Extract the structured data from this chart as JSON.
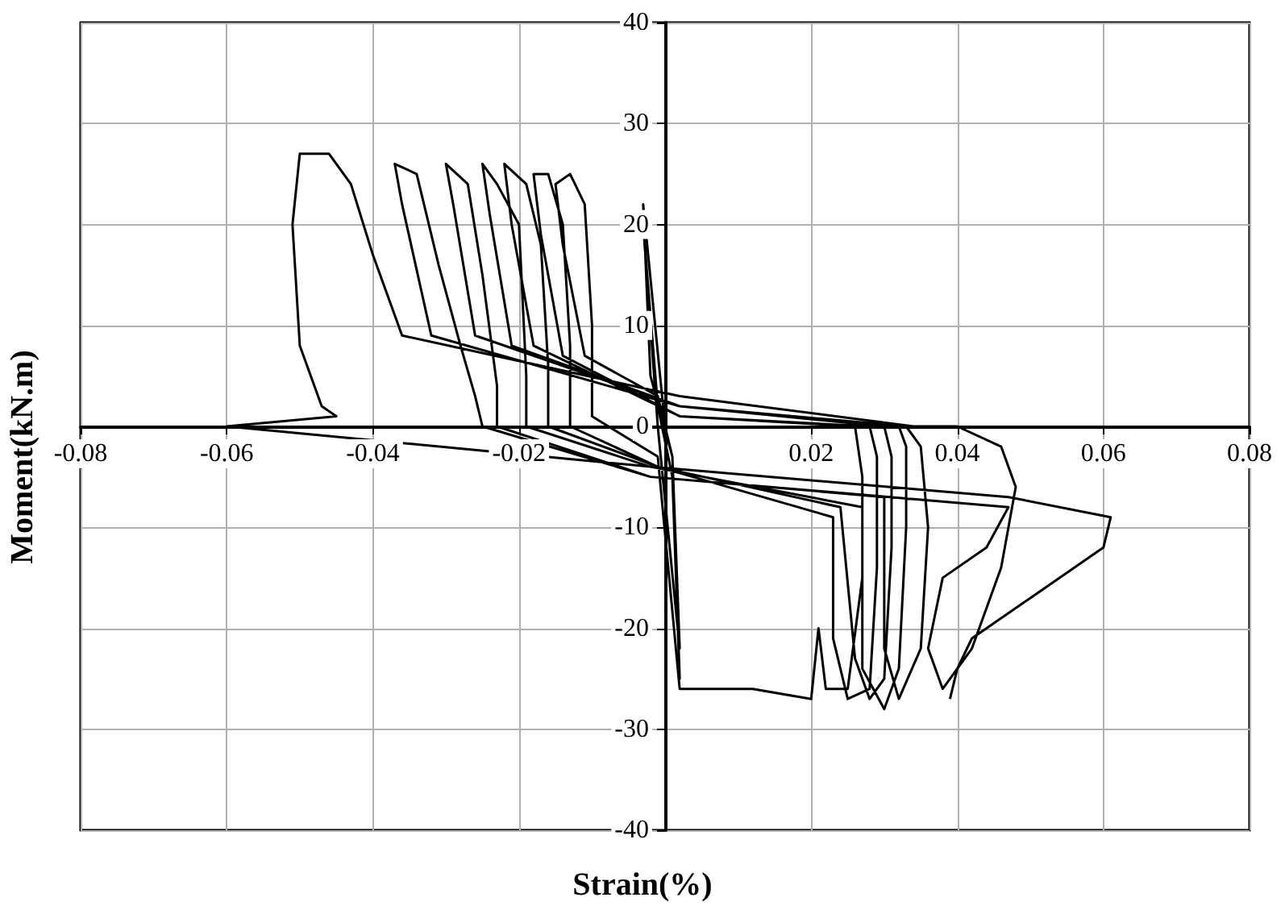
{
  "chart_data": {
    "type": "line",
    "xlabel": "Strain(%)",
    "ylabel": "Moment(kN.m)",
    "xlim": [
      -0.08,
      0.08
    ],
    "ylim": [
      -40,
      40
    ],
    "xticks": [
      -0.08,
      -0.06,
      -0.04,
      -0.02,
      0.02,
      0.04,
      0.06,
      0.08
    ],
    "yticks": [
      -40,
      -30,
      -20,
      -10,
      0,
      10,
      20,
      30,
      40
    ],
    "grid": true,
    "marker": "none",
    "line_style": "solid",
    "x": [
      0,
      -0.003,
      -0.002,
      0.001,
      0.002,
      0.001,
      -0.001,
      -0.003,
      -0.001,
      0.002,
      0.001,
      -0.001,
      -0.011,
      -0.014,
      -0.015,
      -0.013,
      -0.011,
      -0.01,
      -0.01,
      -0.001,
      0.002,
      0.012,
      0.02,
      0.021,
      0.022,
      0.025,
      0.027,
      0.027,
      0.026,
      0.002,
      -0.014,
      -0.017,
      -0.018,
      -0.016,
      -0.014,
      -0.013,
      -0.013,
      -0.001,
      0.023,
      0.023,
      0.025,
      0.028,
      0.029,
      0.029,
      0.028,
      0.002,
      -0.018,
      -0.021,
      -0.022,
      -0.019,
      -0.017,
      -0.016,
      -0.016,
      -0.001,
      0.024,
      0.026,
      0.028,
      0.03,
      0.031,
      0.031,
      0.03,
      0.002,
      -0.021,
      -0.024,
      -0.025,
      -0.023,
      -0.02,
      -0.019,
      -0.019,
      -0.002,
      0.027,
      0.027,
      0.03,
      0.032,
      0.033,
      0.033,
      0.032,
      0.002,
      -0.026,
      -0.029,
      -0.03,
      -0.027,
      -0.025,
      -0.023,
      -0.023,
      -0.002,
      0.03,
      0.03,
      0.032,
      0.035,
      0.036,
      0.035,
      0.033,
      0.002,
      -0.032,
      -0.036,
      -0.037,
      -0.034,
      -0.031,
      -0.028,
      -0.026,
      -0.025,
      -0.002,
      0.047,
      0.044,
      0.038,
      0.036,
      0.038,
      0.042,
      0.046,
      0.048,
      0.046,
      0.04,
      0.034,
      0.002,
      -0.036,
      -0.04,
      -0.043,
      -0.046,
      -0.05,
      -0.051,
      -0.05,
      -0.047,
      -0.045,
      -0.06,
      -0.002,
      0.047,
      0.061,
      0.06,
      0.05,
      0.042,
      0.04,
      0.039
    ],
    "series": [
      {
        "color": "#000000",
        "values": [
          0,
          22,
          5,
          -3,
          -25,
          -5,
          2,
          20,
          0,
          -22,
          -3,
          3,
          7,
          18,
          24,
          25,
          22,
          10,
          1,
          -3,
          -26,
          -26,
          -27,
          -20,
          -26,
          -26,
          -15,
          -5,
          0,
          1,
          7,
          19,
          25,
          25,
          20,
          8,
          0,
          -4,
          -9,
          -21,
          -27,
          -26,
          -14,
          -3,
          0,
          1,
          8,
          20,
          26,
          24,
          18,
          6,
          0,
          -4,
          -8,
          -23,
          -27,
          -25,
          -12,
          -3,
          0,
          2,
          8,
          21,
          26,
          24,
          20,
          5,
          0,
          -4,
          -8,
          -24,
          -28,
          -24,
          -10,
          -2,
          0,
          2,
          9,
          22,
          26,
          24,
          15,
          4,
          0,
          -5,
          -7,
          -22,
          -27,
          -22,
          -10,
          -2,
          0,
          2,
          9,
          22,
          26,
          25,
          16,
          8,
          3,
          0,
          -5,
          -8,
          -12,
          -15,
          -22,
          -26,
          -22,
          -14,
          -6,
          -2,
          0,
          0,
          3,
          9,
          17,
          24,
          27,
          27,
          20,
          8,
          2,
          1,
          0,
          -4,
          -7,
          -9,
          -12,
          -17,
          -21,
          -24,
          -27
        ]
      }
    ]
  }
}
